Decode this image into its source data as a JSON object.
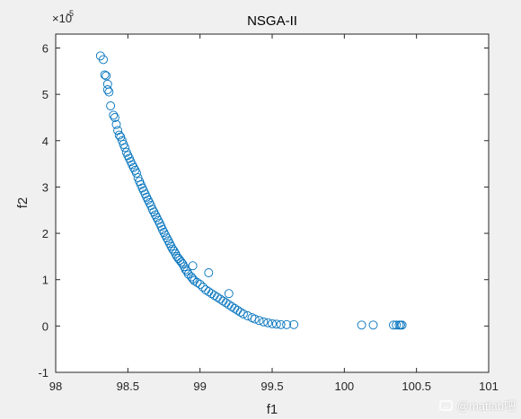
{
  "chart_data": {
    "type": "scatter",
    "title": "NSGA-II",
    "xlabel": "f1",
    "ylabel": "f2",
    "y_exponent_label": "×10",
    "y_exponent_power": "-5",
    "xlim": [
      98,
      101
    ],
    "ylim": [
      -1,
      6.3
    ],
    "y_scale_multiplier": 1e-05,
    "xticks": [
      "98",
      "98.5",
      "99",
      "99.5",
      "100",
      "100.5",
      "101"
    ],
    "yticks": [
      "-1",
      "0",
      "1",
      "2",
      "3",
      "4",
      "5",
      "6"
    ],
    "grid": false,
    "legend": "none",
    "marker": "open-circle",
    "marker_color": "#0072bd",
    "points": [
      [
        98.31,
        5.83
      ],
      [
        98.33,
        5.75
      ],
      [
        98.34,
        5.42
      ],
      [
        98.35,
        5.4
      ],
      [
        98.36,
        5.22
      ],
      [
        98.36,
        5.1
      ],
      [
        98.37,
        5.05
      ],
      [
        98.38,
        4.75
      ],
      [
        98.4,
        4.55
      ],
      [
        98.41,
        4.5
      ],
      [
        98.42,
        4.35
      ],
      [
        98.43,
        4.22
      ],
      [
        98.44,
        4.12
      ],
      [
        98.45,
        4.08
      ],
      [
        98.46,
        4.0
      ],
      [
        98.47,
        3.92
      ],
      [
        98.48,
        3.85
      ],
      [
        98.49,
        3.75
      ],
      [
        98.5,
        3.68
      ],
      [
        98.51,
        3.62
      ],
      [
        98.52,
        3.55
      ],
      [
        98.53,
        3.48
      ],
      [
        98.54,
        3.42
      ],
      [
        98.55,
        3.36
      ],
      [
        98.56,
        3.3
      ],
      [
        98.57,
        3.2
      ],
      [
        98.58,
        3.12
      ],
      [
        98.59,
        3.05
      ],
      [
        98.6,
        2.98
      ],
      [
        98.61,
        2.92
      ],
      [
        98.62,
        2.85
      ],
      [
        98.63,
        2.78
      ],
      [
        98.64,
        2.72
      ],
      [
        98.65,
        2.66
      ],
      [
        98.66,
        2.6
      ],
      [
        98.67,
        2.52
      ],
      [
        98.68,
        2.46
      ],
      [
        98.69,
        2.4
      ],
      [
        98.7,
        2.34
      ],
      [
        98.71,
        2.28
      ],
      [
        98.72,
        2.22
      ],
      [
        98.73,
        2.15
      ],
      [
        98.74,
        2.08
      ],
      [
        98.75,
        2.02
      ],
      [
        98.76,
        1.96
      ],
      [
        98.77,
        1.9
      ],
      [
        98.78,
        1.84
      ],
      [
        98.79,
        1.78
      ],
      [
        98.8,
        1.72
      ],
      [
        98.81,
        1.66
      ],
      [
        98.82,
        1.62
      ],
      [
        98.83,
        1.56
      ],
      [
        98.84,
        1.5
      ],
      [
        98.85,
        1.46
      ],
      [
        98.86,
        1.42
      ],
      [
        98.87,
        1.38
      ],
      [
        98.88,
        1.34
      ],
      [
        98.89,
        1.28
      ],
      [
        98.9,
        1.22
      ],
      [
        98.91,
        1.18
      ],
      [
        98.92,
        1.12
      ],
      [
        98.94,
        1.06
      ],
      [
        98.95,
        1.02
      ],
      [
        98.96,
        0.98
      ],
      [
        98.98,
        0.94
      ],
      [
        99.0,
        0.9
      ],
      [
        99.02,
        0.84
      ],
      [
        99.04,
        0.78
      ],
      [
        99.06,
        0.74
      ],
      [
        99.08,
        0.7
      ],
      [
        99.1,
        0.66
      ],
      [
        99.12,
        0.62
      ],
      [
        99.14,
        0.58
      ],
      [
        99.16,
        0.54
      ],
      [
        99.18,
        0.5
      ],
      [
        99.2,
        0.46
      ],
      [
        99.22,
        0.42
      ],
      [
        99.24,
        0.38
      ],
      [
        99.26,
        0.34
      ],
      [
        99.28,
        0.3
      ],
      [
        99.3,
        0.26
      ],
      [
        99.33,
        0.22
      ],
      [
        99.36,
        0.18
      ],
      [
        99.38,
        0.15
      ],
      [
        99.41,
        0.12
      ],
      [
        99.44,
        0.09
      ],
      [
        99.47,
        0.07
      ],
      [
        99.5,
        0.05
      ],
      [
        99.53,
        0.04
      ],
      [
        99.56,
        0.03
      ],
      [
        99.6,
        0.03
      ],
      [
        99.65,
        0.03
      ],
      [
        99.06,
        1.15
      ],
      [
        99.2,
        0.7
      ],
      [
        98.95,
        1.3
      ],
      [
        100.12,
        0.02
      ],
      [
        100.2,
        0.02
      ],
      [
        100.34,
        0.02
      ],
      [
        100.36,
        0.02
      ],
      [
        100.38,
        0.02
      ],
      [
        100.39,
        0.02
      ],
      [
        100.4,
        0.02
      ]
    ]
  },
  "watermark": {
    "text": "@matlab吧"
  }
}
